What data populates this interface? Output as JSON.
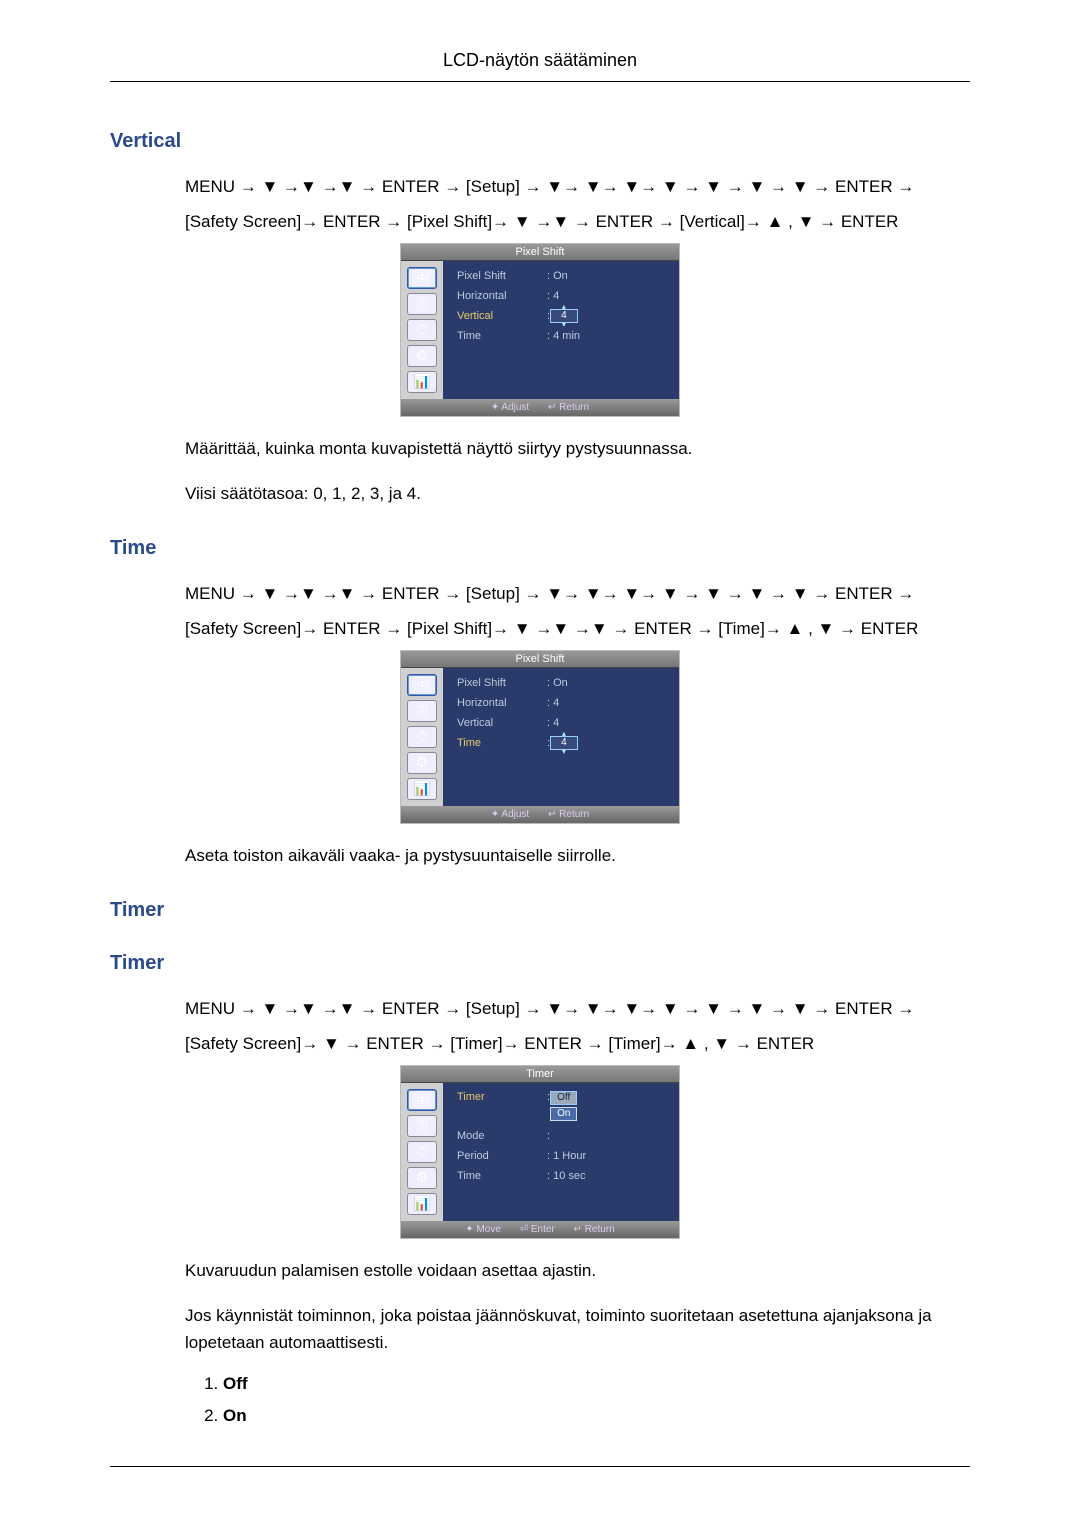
{
  "header": {
    "title": "LCD-näytön säätäminen"
  },
  "sections": {
    "vertical": {
      "title": "Vertical",
      "nav_line1": "MENU → ▼ →▼ →▼ → ENTER → [Setup] → ▼→ ▼→ ▼→ ▼ → ▼ → ▼ → ▼ → ENTER →",
      "nav_line2": "[Safety Screen]→ ENTER → [Pixel Shift]→ ▼ →▼ → ENTER → [Vertical]→ ▲ , ▼ → ENTER",
      "desc1": "Määrittää, kuinka monta kuvapistettä näyttö siirtyy pystysuunnassa.",
      "desc2": "Viisi säätötasoa: 0, 1, 2, 3, ja 4.",
      "osd": {
        "title": "Pixel Shift",
        "rows": [
          {
            "label": "Pixel Shift",
            "value": ": On",
            "hl": false,
            "edit": false
          },
          {
            "label": "Horizontal",
            "value": ": 4",
            "hl": false,
            "edit": false
          },
          {
            "label": "Vertical",
            "value": "4",
            "hl": true,
            "edit": true,
            "prefix": ": "
          },
          {
            "label": "Time",
            "value": ": 4 min",
            "hl": false,
            "edit": false
          }
        ],
        "footer": [
          "✦ Adjust",
          "↵ Return"
        ]
      }
    },
    "time": {
      "title": "Time",
      "nav_line1": "MENU → ▼ →▼ →▼ → ENTER → [Setup] → ▼→ ▼→ ▼→ ▼ → ▼ → ▼ → ▼ → ENTER →",
      "nav_line2": "[Safety Screen]→ ENTER → [Pixel Shift]→ ▼ →▼ →▼ → ENTER → [Time]→ ▲ , ▼ → ENTER",
      "desc1": "Aseta toiston aikaväli vaaka- ja pystysuuntaiselle siirrolle.",
      "osd": {
        "title": "Pixel Shift",
        "rows": [
          {
            "label": "Pixel Shift",
            "value": ": On",
            "hl": false,
            "edit": false
          },
          {
            "label": "Horizontal",
            "value": ": 4",
            "hl": false,
            "edit": false
          },
          {
            "label": "Vertical",
            "value": ": 4",
            "hl": false,
            "edit": false
          },
          {
            "label": "Time",
            "value": "4",
            "hl": true,
            "edit": true,
            "prefix": ": "
          }
        ],
        "footer": [
          "✦ Adjust",
          "↵ Return"
        ]
      }
    },
    "timer1": {
      "title": "Timer"
    },
    "timer2": {
      "title": "Timer",
      "nav_line1": "MENU → ▼ →▼ →▼ → ENTER → [Setup] → ▼→ ▼→ ▼→ ▼ → ▼ → ▼ → ▼ → ENTER →",
      "nav_line2": "[Safety Screen]→ ▼ → ENTER → [Timer]→ ENTER → [Timer]→ ▲ , ▼ → ENTER",
      "desc1": "Kuvaruudun palamisen estolle voidaan asettaa ajastin.",
      "desc2": "Jos käynnistät toiminnon, joka poistaa jäännöskuvat, toiminto suoritetaan asetettuna ajanjaksona ja lopetetaan automaattisesti.",
      "osd": {
        "title": "Timer",
        "rows_custom": true,
        "timer_label": "Timer",
        "opt_off": "Off",
        "opt_on": "On",
        "mode_label": "Mode",
        "period_label": "Period",
        "period_value": ": 1 Hour",
        "time_label": "Time",
        "time_value": ": 10 sec",
        "footer": [
          "✦ Move",
          "⏎ Enter",
          "↵ Return"
        ]
      },
      "list": [
        "Off",
        "On"
      ]
    }
  },
  "icons_glyphs": [
    "🖼",
    "🎚",
    "⏱",
    "⚙",
    "📊"
  ]
}
